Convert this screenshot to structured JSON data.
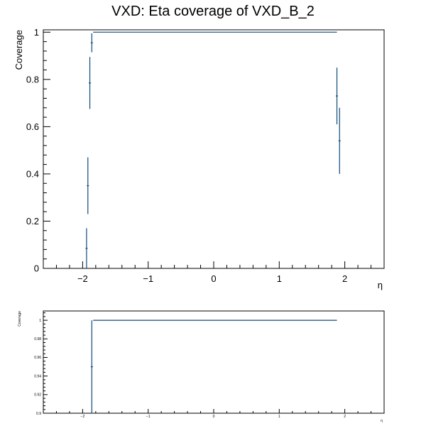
{
  "title": "VXD: Eta coverage of VXD_B_2",
  "colors": {
    "series": "#0d4a7a",
    "axis": "#000000",
    "background": "#ffffff"
  },
  "chart_data": [
    {
      "type": "scatter",
      "panel": "main",
      "xlabel": "η",
      "ylabel": "Coverage",
      "xlim": [
        -2.6,
        2.6
      ],
      "ylim": [
        0,
        1.01
      ],
      "x_ticks": [
        -2,
        -1,
        0,
        1,
        2
      ],
      "x_tick_labels": [
        "−2",
        "−1",
        "0",
        "1",
        "2"
      ],
      "y_ticks": [
        0,
        0.2,
        0.4,
        0.6,
        0.8,
        1
      ],
      "y_tick_labels": [
        "0",
        "0.2",
        "0.4",
        "0.6",
        "0.8",
        "1"
      ],
      "grid": false,
      "series": [
        {
          "points": [
            {
              "x": -1.94,
              "y": 0.085,
              "err": 0.085
            },
            {
              "x": -1.92,
              "y": 0.35,
              "err": 0.12
            },
            {
              "x": -1.89,
              "y": 0.785,
              "err": 0.11
            },
            {
              "x": -1.86,
              "y": 0.955,
              "err": 0.04
            }
          ],
          "flat_segment": {
            "x_from": -1.84,
            "x_to": 1.88,
            "y": 1.0
          },
          "right_points": [
            {
              "x": 1.88,
              "y": 0.73,
              "err": 0.12
            },
            {
              "x": 1.92,
              "y": 0.54,
              "err": 0.14
            }
          ]
        }
      ]
    },
    {
      "type": "scatter",
      "panel": "zoom",
      "xlabel": "η",
      "ylabel": "Coverage",
      "xlim": [
        -2.6,
        2.6
      ],
      "ylim": [
        0.9,
        1.01
      ],
      "x_ticks": [
        -2,
        -1,
        0,
        1,
        2
      ],
      "x_tick_labels": [
        "−2",
        "−1",
        "0",
        "1",
        "2"
      ],
      "y_ticks": [
        0.9,
        0.92,
        0.94,
        0.96,
        0.98,
        1
      ],
      "y_tick_labels": [
        "0.9",
        "0.92",
        "0.94",
        "0.96",
        "0.98",
        "1"
      ],
      "grid": false,
      "series": [
        {
          "points": [
            {
              "x": -1.86,
              "y": 0.95,
              "err": 0.05
            }
          ],
          "flat_segment": {
            "x_from": -1.84,
            "x_to": 1.88,
            "y": 1.0
          }
        }
      ]
    }
  ]
}
